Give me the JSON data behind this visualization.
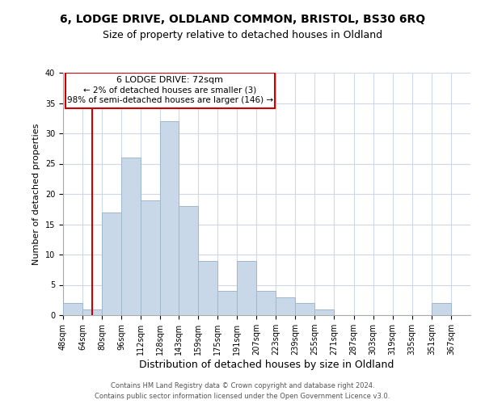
{
  "title": "6, LODGE DRIVE, OLDLAND COMMON, BRISTOL, BS30 6RQ",
  "subtitle": "Size of property relative to detached houses in Oldland",
  "xlabel": "Distribution of detached houses by size in Oldland",
  "ylabel": "Number of detached properties",
  "bar_color": "#c8d8e8",
  "bar_edgecolor": "#a0b8cc",
  "vline_color": "#cc0000",
  "vline_x": 72,
  "annotation_title": "6 LODGE DRIVE: 72sqm",
  "annotation_line1": "← 2% of detached houses are smaller (3)",
  "annotation_line2": "98% of semi-detached houses are larger (146) →",
  "categories": [
    "48sqm",
    "64sqm",
    "80sqm",
    "96sqm",
    "112sqm",
    "128sqm",
    "143sqm",
    "159sqm",
    "175sqm",
    "191sqm",
    "207sqm",
    "223sqm",
    "239sqm",
    "255sqm",
    "271sqm",
    "287sqm",
    "303sqm",
    "319sqm",
    "335sqm",
    "351sqm",
    "367sqm"
  ],
  "values": [
    2,
    1,
    17,
    26,
    19,
    32,
    18,
    9,
    4,
    9,
    4,
    3,
    2,
    1,
    0,
    0,
    0,
    0,
    0,
    2,
    0
  ],
  "ylim": [
    0,
    40
  ],
  "yticks": [
    0,
    5,
    10,
    15,
    20,
    25,
    30,
    35,
    40
  ],
  "bin_edges": [
    48,
    64,
    80,
    96,
    112,
    128,
    143,
    159,
    175,
    191,
    207,
    223,
    239,
    255,
    271,
    287,
    303,
    319,
    335,
    351,
    367,
    383
  ],
  "footer1": "Contains HM Land Registry data © Crown copyright and database right 2024.",
  "footer2": "Contains public sector information licensed under the Open Government Licence v3.0."
}
